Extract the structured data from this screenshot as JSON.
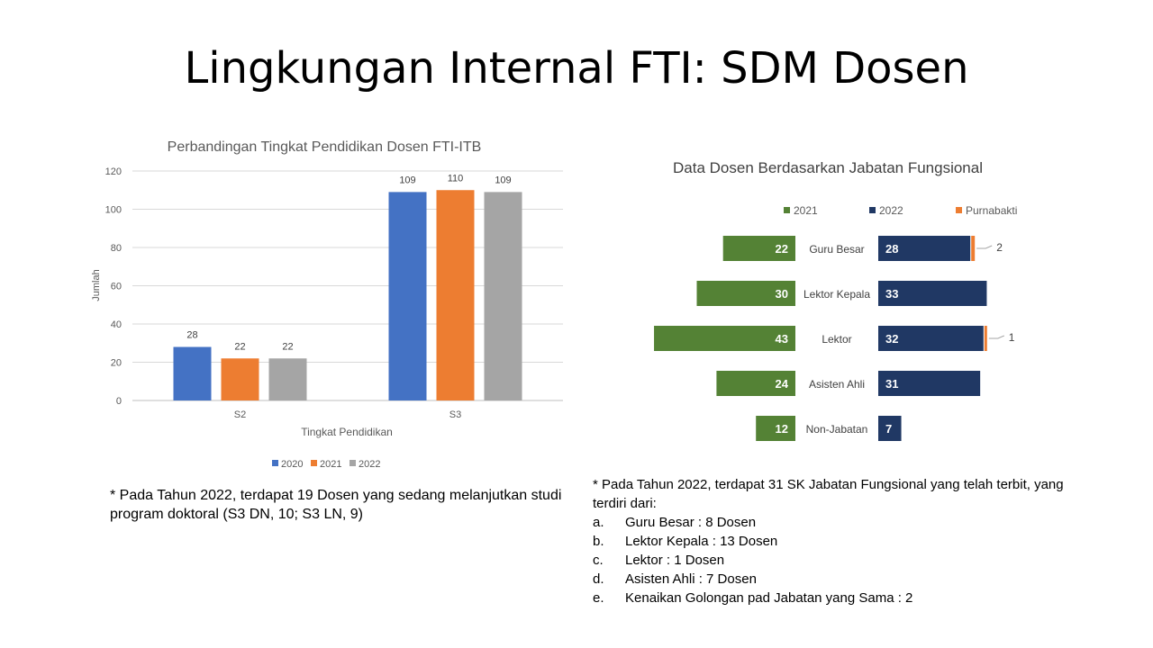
{
  "slide": {
    "title": "Lingkungan Internal FTI: SDM Dosen"
  },
  "chart_data": [
    {
      "type": "bar",
      "title": "Perbandingan Tingkat Pendidikan Dosen FTI-ITB",
      "xlabel": "Tingkat Pendidikan",
      "ylabel": "Jumlah",
      "categories": [
        "S2",
        "S3"
      ],
      "series": [
        {
          "name": "2020",
          "values": [
            28,
            109
          ],
          "color": "#4472C4"
        },
        {
          "name": "2021",
          "values": [
            22,
            110
          ],
          "color": "#ED7D31"
        },
        {
          "name": "2022",
          "values": [
            22,
            109
          ],
          "color": "#A5A5A5"
        }
      ],
      "ylim": [
        0,
        120
      ],
      "yticks": [
        0,
        20,
        40,
        60,
        80,
        100,
        120
      ],
      "grid": true,
      "legend": "bottom"
    },
    {
      "type": "bar",
      "orientation": "horizontal-butterfly",
      "title": "Data Dosen Berdasarkan Jabatan Fungsional",
      "categories": [
        "Guru Besar",
        "Lektor Kepala",
        "Lektor",
        "Asisten Ahli",
        "Non-Jabatan"
      ],
      "series": [
        {
          "name": "2021",
          "values": [
            22,
            30,
            43,
            24,
            12
          ],
          "color": "#548235"
        },
        {
          "name": "2022",
          "values": [
            28,
            33,
            32,
            31,
            7
          ],
          "color": "#203864"
        },
        {
          "name": "Purnabakti",
          "values": [
            2,
            0,
            1,
            0,
            0
          ],
          "color": "#ED7D31"
        }
      ],
      "legend": "top"
    }
  ],
  "notes": {
    "left": "* Pada Tahun 2022, terdapat 19 Dosen yang sedang melanjutkan studi program doktoral (S3 DN, 10; S3 LN, 9)",
    "right_intro": "* Pada Tahun 2022, terdapat 31 SK Jabatan Fungsional yang telah terbit, yang terdiri dari:",
    "right_items": [
      {
        "marker": "a.",
        "text": "Guru Besar  : 8 Dosen"
      },
      {
        "marker": "b.",
        "text": "Lektor Kepala : 13 Dosen"
      },
      {
        "marker": "c.",
        "text": "Lektor : 1 Dosen"
      },
      {
        "marker": "d.",
        "text": "Asisten Ahli : 7 Dosen"
      },
      {
        "marker": "e.",
        "text": "Kenaikan Golongan pad Jabatan yang Sama : 2"
      }
    ]
  }
}
